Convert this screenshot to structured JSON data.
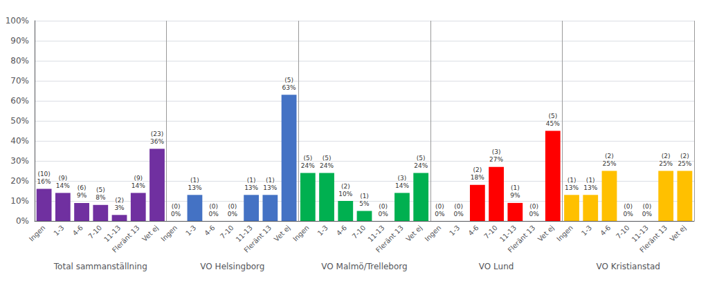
{
  "chart_data": {
    "type": "bar",
    "categories": [
      "Ingen",
      "1-3",
      "4-6",
      "7-10",
      "11-13",
      "Fleränt 13",
      "Vet ej"
    ],
    "series": [
      {
        "name": "Total sammanställning",
        "color": "#7030A0",
        "values": [
          16,
          14,
          9,
          8,
          3,
          14,
          36
        ],
        "value_labels": [
          "16%",
          "14%",
          "9%",
          "8%",
          "3%",
          "14%",
          "36%"
        ],
        "count_labels": [
          "(10)",
          "(9)",
          "(6)",
          "(5)",
          "(2)",
          "(9)",
          "(23)"
        ]
      },
      {
        "name": "VO Helsingborg",
        "color": "#4472C4",
        "values": [
          0,
          13,
          0,
          0,
          13,
          13,
          63
        ],
        "value_labels": [
          "0%",
          "13%",
          "0%",
          "0%",
          "13%",
          "13%",
          "63%"
        ],
        "count_labels": [
          "(0)",
          "(1)",
          "(0)",
          "(0)",
          "(1)",
          "(1)",
          "(5)"
        ]
      },
      {
        "name": "VO Malmö/Trelleborg",
        "color": "#00B050",
        "values": [
          24,
          24,
          10,
          5,
          0,
          14,
          24
        ],
        "value_labels": [
          "24%",
          "24%",
          "10%",
          "5%",
          "0%",
          "14%",
          "24%"
        ],
        "count_labels": [
          "(5)",
          "(5)",
          "(2)",
          "(1)",
          "(0)",
          "(3)",
          "(5)"
        ]
      },
      {
        "name": "VO Lund",
        "color": "#FF0000",
        "values": [
          0,
          0,
          18,
          27,
          9,
          0,
          45
        ],
        "value_labels": [
          "0%",
          "0%",
          "18%",
          "27%",
          "9%",
          "0%",
          "45%"
        ],
        "count_labels": [
          "(0)",
          "(0)",
          "(2)",
          "(3)",
          "(1)",
          "(0)",
          "(5)"
        ]
      },
      {
        "name": "VO Kristianstad",
        "color": "#FFC000",
        "values": [
          13,
          13,
          25,
          0,
          0,
          25,
          25
        ],
        "value_labels": [
          "13%",
          "13%",
          "25%",
          "0%",
          "0%",
          "25%",
          "25%"
        ],
        "count_labels": [
          "(1)",
          "(1)",
          "(2)",
          "(0)",
          "(0)",
          "(2)",
          "(2)"
        ]
      }
    ],
    "ylim": [
      0,
      100
    ],
    "yticks": [
      {
        "value": 0,
        "label": "0%"
      },
      {
        "value": 10,
        "label": "10%"
      },
      {
        "value": 20,
        "label": "20%"
      },
      {
        "value": 30,
        "label": "30%"
      },
      {
        "value": 40,
        "label": "40%"
      },
      {
        "value": 50,
        "label": "50%"
      },
      {
        "value": 60,
        "label": "60%"
      },
      {
        "value": 70,
        "label": "70%"
      },
      {
        "value": 80,
        "label": "80%"
      },
      {
        "value": 90,
        "label": "90%"
      },
      {
        "value": 100,
        "label": "100%"
      }
    ],
    "grid": true,
    "data_labels": true
  }
}
